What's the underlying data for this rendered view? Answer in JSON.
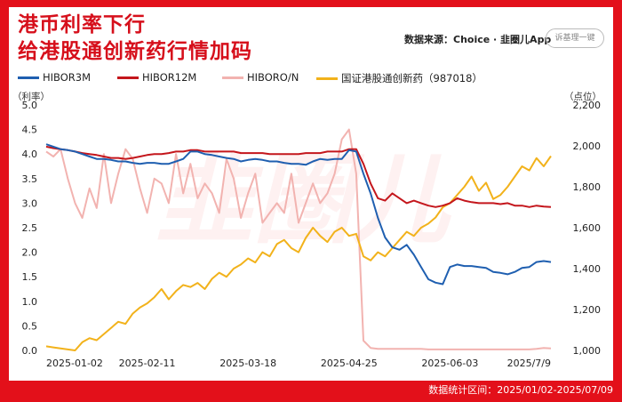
{
  "header": {
    "title_line1": "港币利率下行",
    "title_line2": "给港股通创新药行情加码",
    "source": "数据来源：Choice · 韭圈儿App",
    "search_placeholder": "诉基理一键"
  },
  "footer": {
    "text": "数据统计区间：2025/01/02-2025/07/09"
  },
  "watermark": "韭圈儿",
  "chart_data": {
    "type": "line",
    "left_axis": {
      "title": "（利率）",
      "ylim": [
        0,
        5
      ],
      "ticks": [
        "0.0",
        "0.5",
        "1.0",
        "1.5",
        "2.0",
        "2.5",
        "3.0",
        "3.5",
        "4.0",
        "4.5",
        "5.0"
      ]
    },
    "right_axis": {
      "title": "（点位）",
      "ylim": [
        1000,
        2200
      ],
      "ticks": [
        "1,000",
        "1,200",
        "1,400",
        "1,600",
        "1,800",
        "2,000",
        "2,200"
      ]
    },
    "x_ticks": [
      "2025-01-02",
      "2025-02-11",
      "2025-03-18",
      "2025-04-25",
      "2025-06-03",
      "2025/7/9"
    ],
    "grid": false,
    "legend_position": "top",
    "series": [
      {
        "name": "HIBOR3M",
        "axis": "left",
        "color": "#1f5fb0",
        "values": [
          4.2,
          4.15,
          4.1,
          4.08,
          4.05,
          4.0,
          3.95,
          3.9,
          3.9,
          3.88,
          3.85,
          3.85,
          3.82,
          3.8,
          3.82,
          3.82,
          3.8,
          3.8,
          3.85,
          3.9,
          4.05,
          4.05,
          4.0,
          3.98,
          3.95,
          3.92,
          3.9,
          3.85,
          3.88,
          3.9,
          3.88,
          3.85,
          3.85,
          3.82,
          3.8,
          3.8,
          3.78,
          3.85,
          3.9,
          3.88,
          3.9,
          3.9,
          4.08,
          4.05,
          3.6,
          3.2,
          2.7,
          2.3,
          2.1,
          2.05,
          2.15,
          1.95,
          1.7,
          1.45,
          1.38,
          1.35,
          1.7,
          1.75,
          1.72,
          1.72,
          1.7,
          1.68,
          1.6,
          1.58,
          1.55,
          1.6,
          1.68,
          1.7,
          1.8,
          1.82,
          1.8
        ]
      },
      {
        "name": "HIBOR12M",
        "axis": "left",
        "color": "#c4161c",
        "values": [
          4.15,
          4.12,
          4.1,
          4.08,
          4.05,
          4.02,
          4.0,
          3.98,
          3.95,
          3.92,
          3.92,
          3.9,
          3.92,
          3.95,
          3.98,
          4.0,
          4.0,
          4.02,
          4.05,
          4.05,
          4.08,
          4.08,
          4.05,
          4.05,
          4.05,
          4.05,
          4.05,
          4.02,
          4.02,
          4.02,
          4.02,
          4.0,
          4.0,
          4.0,
          4.0,
          4.0,
          4.02,
          4.02,
          4.02,
          4.05,
          4.05,
          4.05,
          4.1,
          4.1,
          3.8,
          3.4,
          3.1,
          3.05,
          3.2,
          3.1,
          3.0,
          3.05,
          3.0,
          2.95,
          2.92,
          2.95,
          3.0,
          3.1,
          3.05,
          3.02,
          3.0,
          3.0,
          3.0,
          2.98,
          3.0,
          2.95,
          2.95,
          2.92,
          2.95,
          2.93,
          2.92
        ]
      },
      {
        "name": "HIBORO/N",
        "axis": "left",
        "color": "#f2b3b0",
        "values": [
          4.05,
          3.95,
          4.1,
          3.5,
          3.0,
          2.7,
          3.3,
          2.9,
          4.0,
          3.0,
          3.6,
          4.1,
          3.9,
          3.3,
          2.8,
          3.5,
          3.4,
          3.0,
          4.0,
          3.2,
          3.8,
          3.1,
          3.4,
          3.2,
          2.8,
          3.9,
          3.5,
          2.7,
          3.2,
          3.6,
          2.6,
          2.8,
          3.0,
          2.8,
          3.6,
          2.6,
          3.0,
          3.4,
          3.0,
          3.2,
          3.6,
          4.3,
          4.5,
          3.6,
          0.2,
          0.05,
          0.03,
          0.03,
          0.03,
          0.03,
          0.03,
          0.03,
          0.03,
          0.02,
          0.02,
          0.02,
          0.02,
          0.02,
          0.02,
          0.02,
          0.02,
          0.02,
          0.02,
          0.02,
          0.02,
          0.02,
          0.02,
          0.02,
          0.03,
          0.05,
          0.04
        ]
      },
      {
        "name": "国证港股通创新药（987018）",
        "axis": "right",
        "color": "#f2b21b",
        "values": [
          1020,
          1015,
          1010,
          1005,
          1000,
          1040,
          1060,
          1050,
          1080,
          1110,
          1140,
          1130,
          1180,
          1210,
          1230,
          1260,
          1300,
          1250,
          1290,
          1320,
          1310,
          1330,
          1300,
          1350,
          1380,
          1360,
          1400,
          1420,
          1450,
          1430,
          1480,
          1460,
          1520,
          1540,
          1500,
          1480,
          1550,
          1600,
          1560,
          1530,
          1580,
          1600,
          1560,
          1570,
          1460,
          1440,
          1480,
          1460,
          1500,
          1540,
          1580,
          1560,
          1600,
          1620,
          1650,
          1700,
          1720,
          1760,
          1800,
          1850,
          1780,
          1820,
          1740,
          1760,
          1800,
          1850,
          1900,
          1880,
          1940,
          1900,
          1950
        ]
      }
    ]
  }
}
